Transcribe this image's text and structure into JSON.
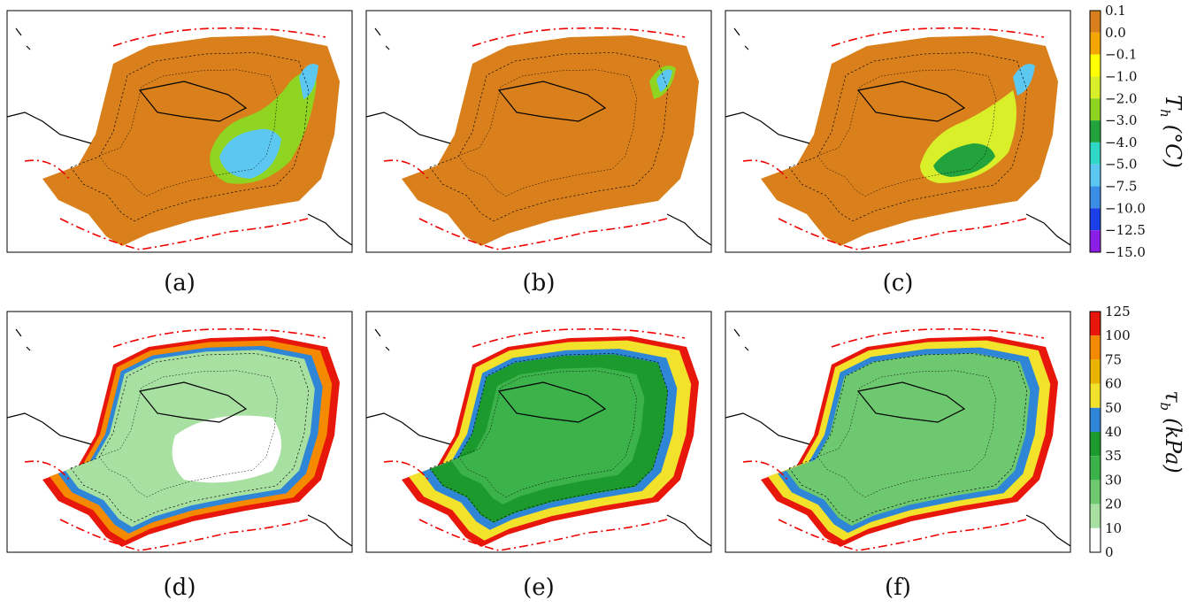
{
  "panels": {
    "labels": [
      "(a)",
      "(b)",
      "(c)",
      "(d)",
      "(e)",
      "(f)"
    ]
  },
  "colorbars": [
    {
      "symbol": "T",
      "subscript": "h",
      "unit": "(°C)",
      "ticks": [
        "0.1",
        "0.0",
        "−0.1",
        "−1.0",
        "−2.0",
        "−3.0",
        "−4.0",
        "−5.0",
        "−7.5",
        "−10.0",
        "−12.5",
        "−15.0"
      ],
      "colors": [
        "#d9801c",
        "#f3a600",
        "#ffff00",
        "#d8ef2a",
        "#8ed420",
        "#23a33c",
        "#2fd8c6",
        "#5cc8f2",
        "#3a8ee6",
        "#1c40e8",
        "#8c1ee6"
      ]
    },
    {
      "symbol": "τ",
      "subscript": "b",
      "unit": "(kPa)",
      "ticks": [
        "125",
        "100",
        "75",
        "60",
        "50",
        "40",
        "35",
        "30",
        "20",
        "10",
        "0"
      ],
      "colors": [
        "#e8170c",
        "#f58a00",
        "#e8b400",
        "#f2e22c",
        "#2f86d6",
        "#1c9a2e",
        "#3bb24a",
        "#6ec870",
        "#a8e0a2",
        "#ffffff"
      ]
    }
  ]
}
